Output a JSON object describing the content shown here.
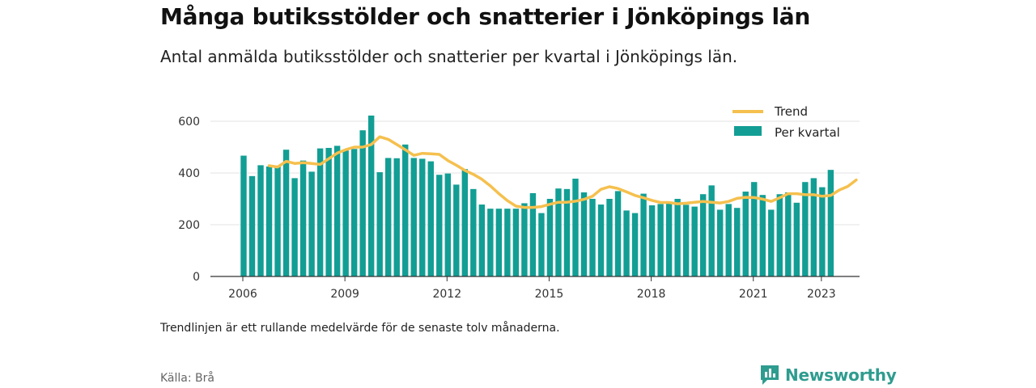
{
  "header": {
    "title": "Många butiksstölder och snatterier i Jönköpings län",
    "subtitle": "Antal anmälda butiksstölder och snatterier per kvartal i Jönköpings län."
  },
  "footer": {
    "note": "Trendlinjen är ett rullande medelvärde för de senaste tolv månaderna.",
    "source": "Källa: Brå",
    "brand": "Newsworthy"
  },
  "colors": {
    "bars": "#129e94",
    "trend": "#f5c04e",
    "grid": "#e3e3e3",
    "axis": "#333333",
    "brand": "#2e9c8f"
  },
  "chart_data": {
    "type": "bar",
    "ylim": [
      0,
      700
    ],
    "yticks": [
      0,
      200,
      400,
      600
    ],
    "xlim": [
      2005.6,
      2023.9
    ],
    "xticks": [
      {
        "value": 2006,
        "label": "2006"
      },
      {
        "value": 2009,
        "label": "2009"
      },
      {
        "value": 2012,
        "label": "2012"
      },
      {
        "value": 2015,
        "label": "2015"
      },
      {
        "value": 2018,
        "label": "2018"
      },
      {
        "value": 2021,
        "label": "2021"
      },
      {
        "value": 2023,
        "label": "2023"
      }
    ],
    "grid": true,
    "legend": "top-right",
    "quarter_start": {
      "year": 2006,
      "quarter": 1
    },
    "series": [
      {
        "name": "Per kvartal",
        "kind": "bar",
        "values": [
          467,
          388,
          430,
          425,
          425,
          490,
          380,
          448,
          405,
          495,
          497,
          505,
          487,
          493,
          565,
          622,
          403,
          458,
          457,
          510,
          458,
          455,
          445,
          393,
          398,
          355,
          415,
          338,
          278,
          262,
          262,
          262,
          262,
          283,
          322,
          245,
          300,
          340,
          338,
          378,
          325,
          300,
          278,
          300,
          330,
          255,
          245,
          320,
          275,
          280,
          288,
          300,
          277,
          270,
          318,
          352,
          258,
          280,
          265,
          328,
          365,
          315,
          258,
          318,
          325,
          285,
          365,
          380,
          345,
          412
        ]
      },
      {
        "name": "Trend",
        "kind": "line",
        "start_index": 3,
        "values": [
          428,
          423,
          445,
          437,
          440,
          437,
          433,
          455,
          477,
          490,
          500,
          500,
          510,
          540,
          530,
          510,
          490,
          468,
          476,
          474,
          472,
          448,
          430,
          410,
          395,
          376,
          350,
          320,
          293,
          272,
          267,
          267,
          270,
          279,
          287,
          287,
          291,
          298,
          310,
          337,
          347,
          340,
          327,
          313,
          304,
          294,
          286,
          286,
          281,
          283,
          287,
          290,
          287,
          284,
          290,
          302,
          306,
          305,
          299,
          290,
          304,
          320,
          320,
          316,
          316,
          310,
          313,
          334,
          348,
          373
        ]
      }
    ]
  }
}
